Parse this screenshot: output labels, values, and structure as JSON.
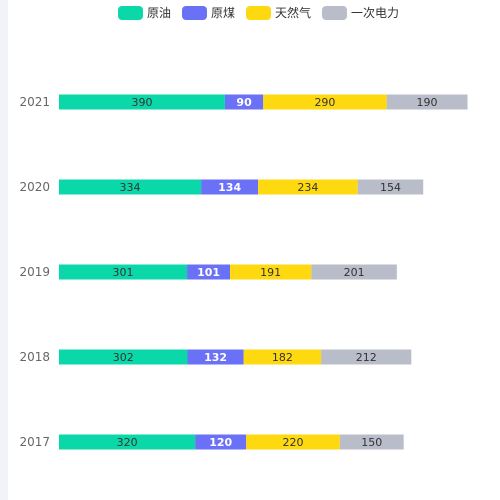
{
  "chart_data": {
    "type": "bar",
    "orientation": "horizontal",
    "stacked": true,
    "categories": [
      "2021",
      "2020",
      "2019",
      "2018",
      "2017"
    ],
    "series": [
      {
        "name": "原油",
        "color": "#0bd8a9",
        "label_color": "#333333",
        "label_weight": "normal",
        "values": [
          390,
          334,
          301,
          302,
          320
        ]
      },
      {
        "name": "原煤",
        "color": "#6a71f6",
        "label_color": "#ffffff",
        "label_weight": "bold",
        "values": [
          90,
          134,
          101,
          132,
          120
        ]
      },
      {
        "name": "天然气",
        "color": "#fed910",
        "label_color": "#333333",
        "label_weight": "normal",
        "values": [
          290,
          234,
          191,
          182,
          220
        ]
      },
      {
        "name": "一次电力",
        "color": "#b9bcc9",
        "label_color": "#333333",
        "label_weight": "normal",
        "values": [
          190,
          154,
          201,
          212,
          150
        ]
      }
    ],
    "xlim": [
      0,
      960
    ],
    "legend_position": "top",
    "grid": false,
    "title": "",
    "xlabel": "",
    "ylabel": ""
  }
}
